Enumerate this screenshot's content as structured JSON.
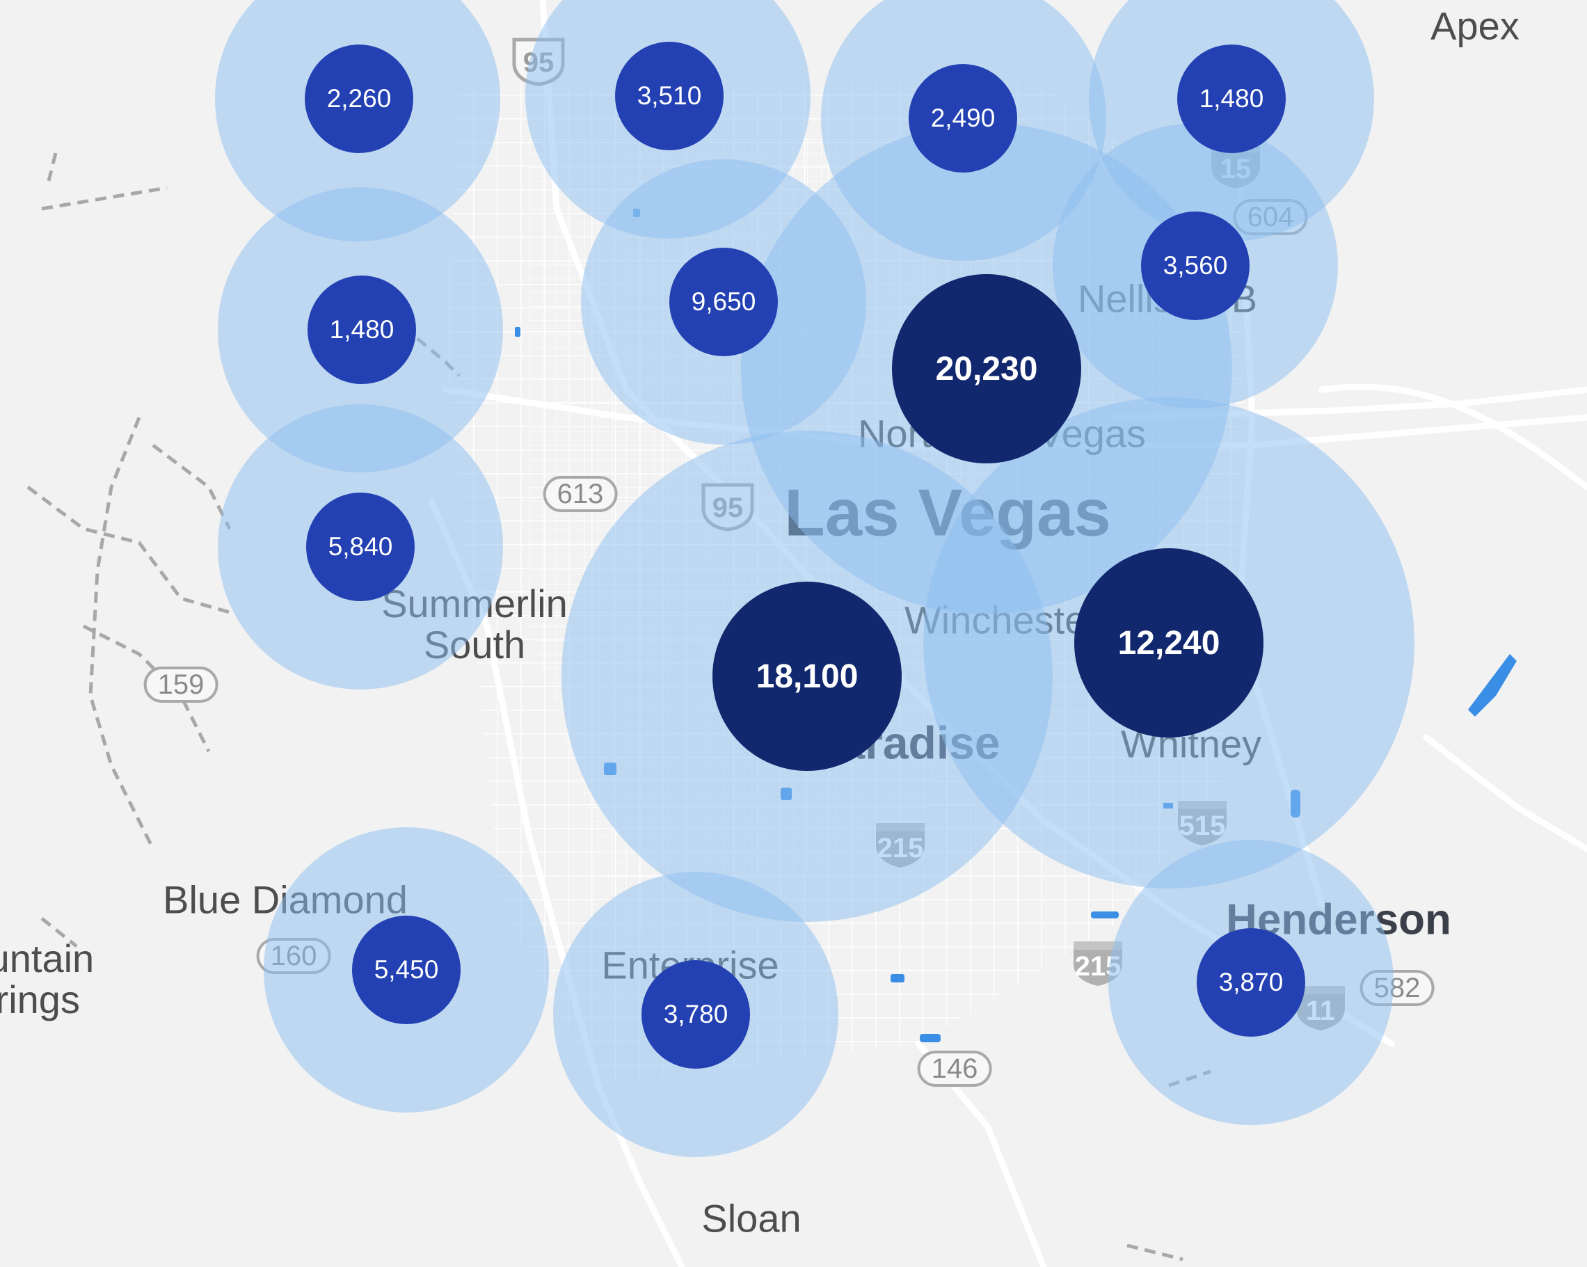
{
  "map": {
    "colors": {
      "land": "#f2f2f2",
      "roads": "#ffffff",
      "trails": "#a8a8a8",
      "water": "#3a8ee6",
      "halo": "#8cbdf0",
      "marker_small": "#2341b3",
      "marker_large": "#12286e"
    },
    "places": [
      {
        "name": "Apex",
        "style": "med"
      },
      {
        "name": "Nellis AFB",
        "style": "med"
      },
      {
        "name": "Las Vegas",
        "style": "major"
      },
      {
        "name": "Winchester",
        "style": "med"
      },
      {
        "name": "Paradise",
        "style": "major-sub"
      },
      {
        "name": "Whitney",
        "style": "med"
      },
      {
        "name": "Summerlin South",
        "style": "med"
      },
      {
        "name": "Blue Diamond",
        "style": "med"
      },
      {
        "name": "Mountain Springs",
        "style": "med"
      },
      {
        "name": "Enterprise",
        "style": "med"
      },
      {
        "name": "Henderson",
        "style": "bold"
      },
      {
        "name": "Sloan",
        "style": "med"
      },
      {
        "name": "North Las Vegas",
        "style": "med"
      }
    ],
    "shields": [
      {
        "label": "95",
        "type": "us"
      },
      {
        "label": "95",
        "type": "us"
      },
      {
        "label": "613",
        "type": "state"
      },
      {
        "label": "15",
        "type": "interstate"
      },
      {
        "label": "604",
        "type": "state"
      },
      {
        "label": "159",
        "type": "state"
      },
      {
        "label": "160",
        "type": "state"
      },
      {
        "label": "215",
        "type": "interstate"
      },
      {
        "label": "215",
        "type": "interstate"
      },
      {
        "label": "515",
        "type": "interstate"
      },
      {
        "label": "11",
        "type": "interstate"
      },
      {
        "label": "582",
        "type": "state"
      },
      {
        "label": "146",
        "type": "state"
      }
    ],
    "clusters": [
      {
        "count": "2,260",
        "size": "small"
      },
      {
        "count": "3,510",
        "size": "small"
      },
      {
        "count": "2,490",
        "size": "small"
      },
      {
        "count": "1,480",
        "size": "small"
      },
      {
        "count": "1,480",
        "size": "small"
      },
      {
        "count": "9,650",
        "size": "small"
      },
      {
        "count": "3,560",
        "size": "small"
      },
      {
        "count": "20,230",
        "size": "large"
      },
      {
        "count": "5,840",
        "size": "small"
      },
      {
        "count": "18,100",
        "size": "large"
      },
      {
        "count": "12,240",
        "size": "large"
      },
      {
        "count": "5,450",
        "size": "small"
      },
      {
        "count": "3,780",
        "size": "small"
      },
      {
        "count": "3,870",
        "size": "small"
      }
    ]
  }
}
